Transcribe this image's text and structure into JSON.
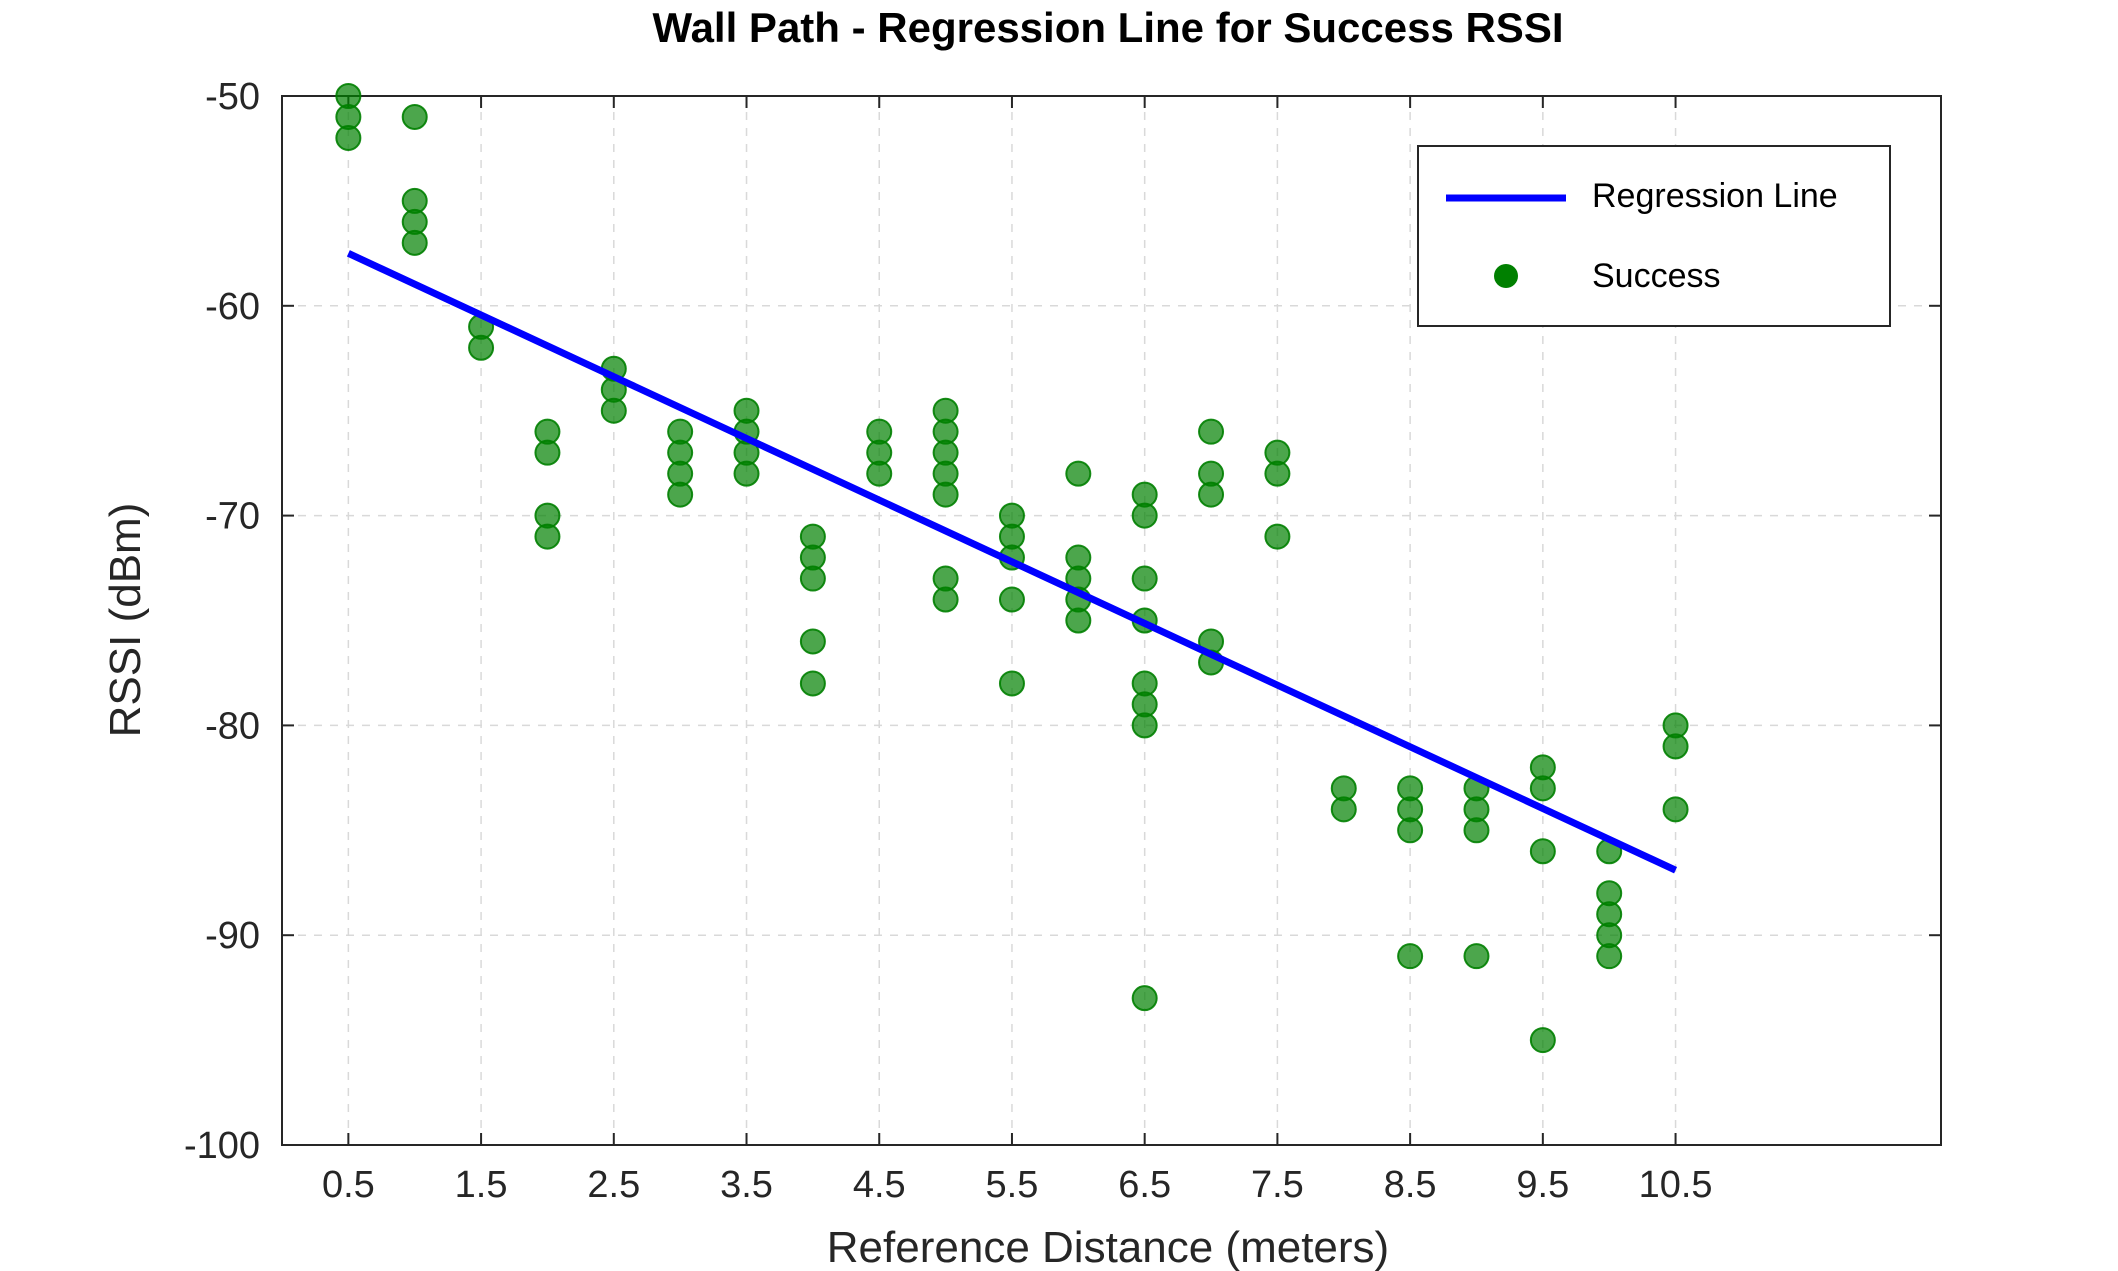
{
  "chart_data": {
    "type": "scatter",
    "title": "Wall Path - Regression Line for Success RSSI",
    "xlabel": "Reference Distance (meters)",
    "ylabel": "RSSI (dBm)",
    "xlim": [
      0,
      12.5
    ],
    "ylim": [
      -100,
      -50
    ],
    "x_ticks": [
      "0.5",
      "1.5",
      "2.5",
      "3.5",
      "4.5",
      "5.5",
      "6.5",
      "7.5",
      "8.5",
      "9.5",
      "10.5"
    ],
    "y_ticks": [
      "-50",
      "-60",
      "-70",
      "-80",
      "-90",
      "-100"
    ],
    "grid": true,
    "legend_position": "top-right",
    "colors": {
      "regression": "#0000ff",
      "success": "#008000"
    },
    "series": [
      {
        "name": "Regression Line",
        "type": "line",
        "x": [
          0.5,
          10.5
        ],
        "y": [
          -57.5,
          -86.9
        ]
      },
      {
        "name": "Success",
        "type": "scatter",
        "points": [
          [
            0.5,
            -50
          ],
          [
            0.5,
            -51
          ],
          [
            0.5,
            -52
          ],
          [
            1,
            -51
          ],
          [
            1,
            -55
          ],
          [
            1,
            -56
          ],
          [
            1,
            -57
          ],
          [
            1.5,
            -61
          ],
          [
            1.5,
            -62
          ],
          [
            2,
            -66
          ],
          [
            2,
            -67
          ],
          [
            2,
            -70
          ],
          [
            2,
            -71
          ],
          [
            2.5,
            -63
          ],
          [
            2.5,
            -64
          ],
          [
            2.5,
            -65
          ],
          [
            3,
            -66
          ],
          [
            3,
            -67
          ],
          [
            3,
            -68
          ],
          [
            3,
            -69
          ],
          [
            3.5,
            -65
          ],
          [
            3.5,
            -66
          ],
          [
            3.5,
            -67
          ],
          [
            3.5,
            -68
          ],
          [
            4,
            -71
          ],
          [
            4,
            -72
          ],
          [
            4,
            -73
          ],
          [
            4,
            -76
          ],
          [
            4,
            -78
          ],
          [
            4.5,
            -66
          ],
          [
            4.5,
            -67
          ],
          [
            4.5,
            -68
          ],
          [
            5,
            -65
          ],
          [
            5,
            -66
          ],
          [
            5,
            -67
          ],
          [
            5,
            -68
          ],
          [
            5,
            -69
          ],
          [
            5,
            -73
          ],
          [
            5,
            -74
          ],
          [
            5.5,
            -70
          ],
          [
            5.5,
            -71
          ],
          [
            5.5,
            -72
          ],
          [
            5.5,
            -74
          ],
          [
            5.5,
            -78
          ],
          [
            6,
            -68
          ],
          [
            6,
            -72
          ],
          [
            6,
            -73
          ],
          [
            6,
            -74
          ],
          [
            6,
            -75
          ],
          [
            6.5,
            -69
          ],
          [
            6.5,
            -70
          ],
          [
            6.5,
            -73
          ],
          [
            6.5,
            -75
          ],
          [
            6.5,
            -78
          ],
          [
            6.5,
            -79
          ],
          [
            6.5,
            -80
          ],
          [
            6.5,
            -93
          ],
          [
            7,
            -66
          ],
          [
            7,
            -68
          ],
          [
            7,
            -69
          ],
          [
            7,
            -76
          ],
          [
            7,
            -77
          ],
          [
            7.5,
            -67
          ],
          [
            7.5,
            -68
          ],
          [
            7.5,
            -71
          ],
          [
            8,
            -83
          ],
          [
            8,
            -84
          ],
          [
            8.5,
            -83
          ],
          [
            8.5,
            -84
          ],
          [
            8.5,
            -85
          ],
          [
            8.5,
            -91
          ],
          [
            9,
            -83
          ],
          [
            9,
            -84
          ],
          [
            9,
            -85
          ],
          [
            9,
            -91
          ],
          [
            9.5,
            -82
          ],
          [
            9.5,
            -83
          ],
          [
            9.5,
            -86
          ],
          [
            9.5,
            -95
          ],
          [
            10,
            -86
          ],
          [
            10,
            -88
          ],
          [
            10,
            -89
          ],
          [
            10,
            -90
          ],
          [
            10,
            -91
          ],
          [
            10.5,
            -80
          ],
          [
            10.5,
            -81
          ],
          [
            10.5,
            -84
          ]
        ]
      }
    ]
  }
}
